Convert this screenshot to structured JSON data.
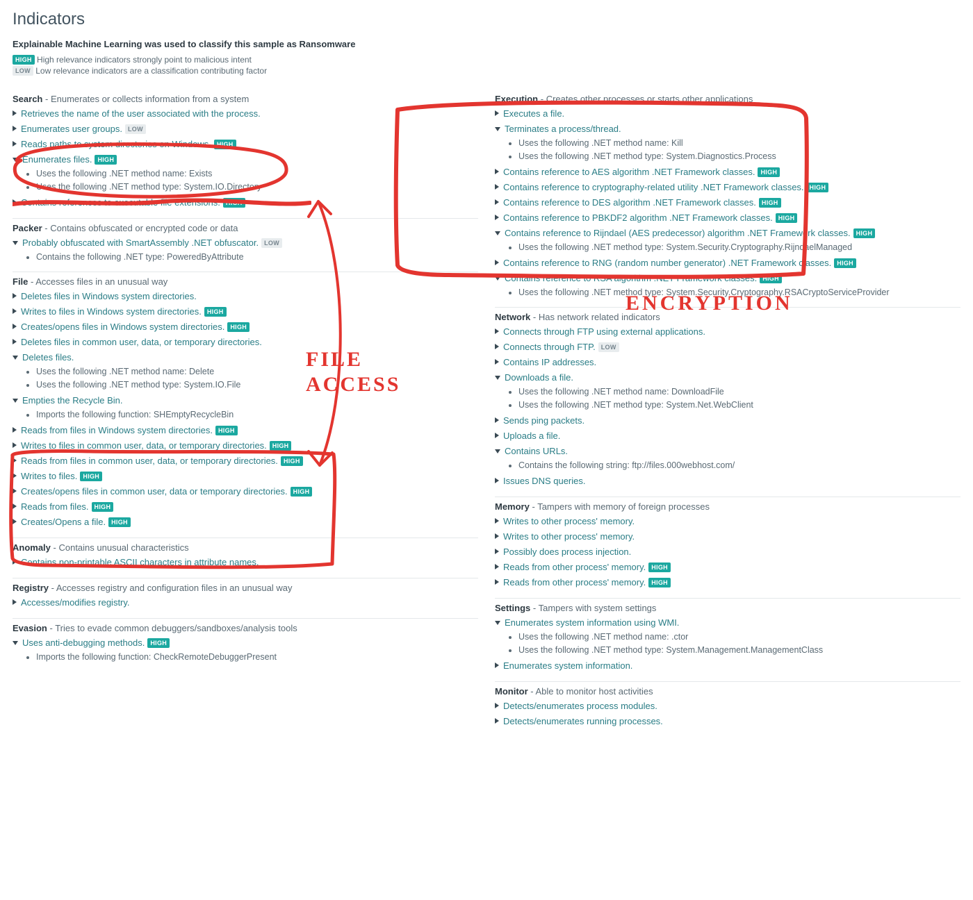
{
  "title": "Indicators",
  "subtitle": "Explainable Machine Learning was used to classify this sample as Ransomware",
  "legend": {
    "high_badge": "HIGH",
    "high_text": "High relevance indicators strongly point to malicious intent",
    "low_badge": "LOW",
    "low_text": "Low relevance indicators are a classification contributing factor"
  },
  "colors": {
    "accent_teal": "#2a7d86",
    "badge_high_bg": "#1ba8a0",
    "badge_low_bg": "#e8ecee",
    "rule": "#e4e8ea",
    "ink": "#e3352f"
  },
  "annotations": {
    "file_access": "FILE ACCESS",
    "encryption": "ENCRYPTION"
  },
  "left": [
    {
      "name": "Search",
      "desc": "Enumerates or collects information from a system",
      "items": [
        {
          "open": false,
          "label": "Retrieves the name of the user associated with the process."
        },
        {
          "open": false,
          "label": "Enumerates user groups.",
          "badge": "LOW"
        },
        {
          "open": false,
          "label": "Reads paths to system directories on Windows.",
          "badge": "HIGH"
        },
        {
          "open": true,
          "label": "Enumerates files.",
          "badge": "HIGH",
          "sub": [
            "Uses the following .NET method name: Exists",
            "Uses the following .NET method type: System.IO.Directory"
          ]
        },
        {
          "open": false,
          "label": "Contains references to executable file extensions.",
          "badge": "HIGH"
        }
      ]
    },
    {
      "name": "Packer",
      "desc": "Contains obfuscated or encrypted code or data",
      "items": [
        {
          "open": true,
          "label": "Probably obfuscated with SmartAssembly .NET obfuscator.",
          "badge": "LOW",
          "sub": [
            "Contains the following .NET type: PoweredByAttribute"
          ]
        }
      ]
    },
    {
      "name": "File",
      "desc": "Accesses files in an unusual way",
      "items": [
        {
          "open": false,
          "label": "Deletes files in Windows system directories."
        },
        {
          "open": false,
          "label": "Writes to files in Windows system directories.",
          "badge": "HIGH"
        },
        {
          "open": false,
          "label": "Creates/opens files in Windows system directories.",
          "badge": "HIGH"
        },
        {
          "open": false,
          "label": "Deletes files in common user, data, or temporary directories."
        },
        {
          "open": true,
          "label": "Deletes files.",
          "sub": [
            "Uses the following .NET method name: Delete",
            "Uses the following .NET method type: System.IO.File"
          ]
        },
        {
          "open": true,
          "label": "Empties the Recycle Bin.",
          "sub": [
            "Imports the following function: SHEmptyRecycleBin"
          ]
        },
        {
          "open": false,
          "label": "Reads from files in Windows system directories.",
          "badge": "HIGH"
        },
        {
          "open": false,
          "label": "Writes to files in common user, data, or temporary directories.",
          "badge": "HIGH"
        },
        {
          "open": false,
          "label": "Reads from files in common user, data, or temporary directories.",
          "badge": "HIGH"
        },
        {
          "open": false,
          "label": "Writes to files.",
          "badge": "HIGH"
        },
        {
          "open": false,
          "label": "Creates/opens files in common user, data or temporary directories.",
          "badge": "HIGH"
        },
        {
          "open": false,
          "label": "Reads from files.",
          "badge": "HIGH"
        },
        {
          "open": false,
          "label": "Creates/Opens a file.",
          "badge": "HIGH"
        }
      ]
    },
    {
      "name": "Anomaly",
      "desc": "Contains unusual characteristics",
      "items": [
        {
          "open": false,
          "label": "Contains non-printable ASCII characters in attribute names."
        }
      ]
    },
    {
      "name": "Registry",
      "desc": "Accesses registry and configuration files in an unusual way",
      "items": [
        {
          "open": false,
          "label": "Accesses/modifies registry."
        }
      ]
    },
    {
      "name": "Evasion",
      "desc": "Tries to evade common debuggers/sandboxes/analysis tools",
      "items": [
        {
          "open": true,
          "label": "Uses anti-debugging methods.",
          "badge": "HIGH",
          "sub": [
            "Imports the following function: CheckRemoteDebuggerPresent"
          ]
        }
      ]
    }
  ],
  "right": [
    {
      "name": "Execution",
      "desc": "Creates other processes or starts other applications",
      "items": [
        {
          "open": false,
          "label": "Executes a file."
        },
        {
          "open": true,
          "label": "Terminates a process/thread.",
          "sub": [
            "Uses the following .NET method name: Kill",
            "Uses the following .NET method type: System.Diagnostics.Process"
          ]
        },
        {
          "open": false,
          "label": "Contains reference to AES algorithm .NET Framework classes.",
          "badge": "HIGH"
        },
        {
          "open": false,
          "label": "Contains reference to cryptography-related utility .NET Framework classes.",
          "badge": "HIGH"
        },
        {
          "open": false,
          "label": "Contains reference to DES algorithm .NET Framework classes.",
          "badge": "HIGH"
        },
        {
          "open": false,
          "label": "Contains reference to PBKDF2 algorithm .NET Framework classes.",
          "badge": "HIGH"
        },
        {
          "open": true,
          "label": "Contains reference to Rijndael (AES predecessor) algorithm .NET Framework classes.",
          "badge": "HIGH",
          "sub": [
            "Uses the following .NET method type: System.Security.Cryptography.RijndaelManaged"
          ]
        },
        {
          "open": false,
          "label": "Contains reference to RNG (random number generator) .NET Framework classes.",
          "badge": "HIGH"
        },
        {
          "open": true,
          "label": "Contains reference to RSA algorithm .NET Framework classes.",
          "badge": "HIGH",
          "sub": [
            "Uses the following .NET method type: System.Security.Cryptography.RSACryptoServiceProvider"
          ]
        }
      ]
    },
    {
      "name": "Network",
      "desc": "Has network related indicators",
      "items": [
        {
          "open": false,
          "label": "Connects through FTP using external applications."
        },
        {
          "open": false,
          "label": "Connects through FTP.",
          "badge": "LOW"
        },
        {
          "open": false,
          "label": "Contains IP addresses."
        },
        {
          "open": true,
          "label": "Downloads a file.",
          "sub": [
            "Uses the following .NET method name: DownloadFile",
            "Uses the following .NET method type: System.Net.WebClient"
          ]
        },
        {
          "open": false,
          "label": "Sends ping packets."
        },
        {
          "open": false,
          "label": "Uploads a file."
        },
        {
          "open": true,
          "label": "Contains URLs.",
          "sub": [
            "Contains the following string: ftp://files.000webhost.com/"
          ]
        },
        {
          "open": false,
          "label": "Issues DNS queries."
        }
      ]
    },
    {
      "name": "Memory",
      "desc": "Tampers with memory of foreign processes",
      "items": [
        {
          "open": false,
          "label": "Writes to other process' memory."
        },
        {
          "open": false,
          "label": "Writes to other process' memory."
        },
        {
          "open": false,
          "label": "Possibly does process injection."
        },
        {
          "open": false,
          "label": "Reads from other process' memory.",
          "badge": "HIGH"
        },
        {
          "open": false,
          "label": "Reads from other process' memory.",
          "badge": "HIGH"
        }
      ]
    },
    {
      "name": "Settings",
      "desc": "Tampers with system settings",
      "items": [
        {
          "open": true,
          "label": "Enumerates system information using WMI.",
          "sub": [
            "Uses the following .NET method name: .ctor",
            "Uses the following .NET method type: System.Management.ManagementClass"
          ]
        },
        {
          "open": false,
          "label": "Enumerates system information."
        }
      ]
    },
    {
      "name": "Monitor",
      "desc": "Able to monitor host activities",
      "items": [
        {
          "open": false,
          "label": "Detects/enumerates process modules."
        },
        {
          "open": false,
          "label": "Detects/enumerates running processes."
        }
      ]
    }
  ]
}
